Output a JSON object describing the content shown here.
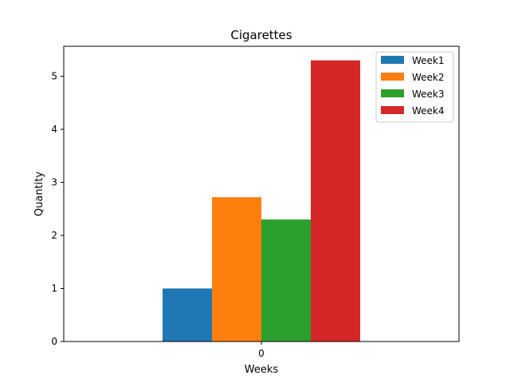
{
  "chart_data": {
    "type": "bar",
    "title": "Cigarettes",
    "xlabel": "Weeks",
    "ylabel": "Quantity",
    "categories": [
      "0"
    ],
    "series": [
      {
        "name": "Week1",
        "values": [
          1.0
        ],
        "color": "#1f77b4"
      },
      {
        "name": "Week2",
        "values": [
          2.72
        ],
        "color": "#ff7f0e"
      },
      {
        "name": "Week3",
        "values": [
          2.3
        ],
        "color": "#2ca02c"
      },
      {
        "name": "Week4",
        "values": [
          5.3
        ],
        "color": "#d62728"
      }
    ],
    "ylim": [
      0,
      5.565
    ],
    "yticks": [
      0,
      1,
      2,
      3,
      4,
      5
    ],
    "grid": false,
    "legend_position": "top-right"
  }
}
